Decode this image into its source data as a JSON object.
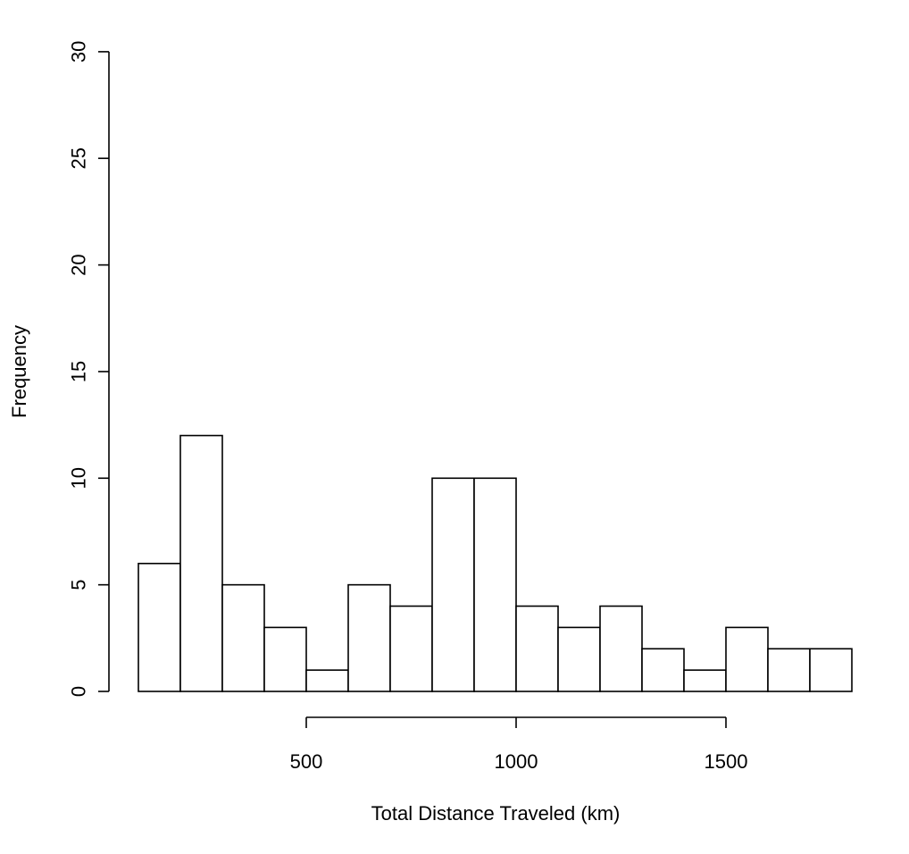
{
  "chart_data": {
    "type": "bar",
    "subtype": "histogram",
    "title": "",
    "xlabel": "Total Distance Traveled (km)",
    "ylabel": "Frequency",
    "bin_edges": [
      100,
      200,
      300,
      400,
      500,
      600,
      700,
      800,
      900,
      1000,
      1100,
      1200,
      1300,
      1400,
      1500,
      1600,
      1700,
      1800
    ],
    "values": [
      6,
      12,
      5,
      3,
      1,
      5,
      4,
      10,
      10,
      4,
      3,
      4,
      2,
      1,
      3,
      2,
      2
    ],
    "xlim": [
      100,
      1800
    ],
    "ylim": [
      0,
      30
    ],
    "x_ticks": [
      500,
      1000,
      1500
    ],
    "y_ticks": [
      0,
      5,
      10,
      15,
      20,
      25,
      30
    ],
    "grid": false,
    "bar_color": "#ffffff",
    "edge_color": "#000000"
  }
}
